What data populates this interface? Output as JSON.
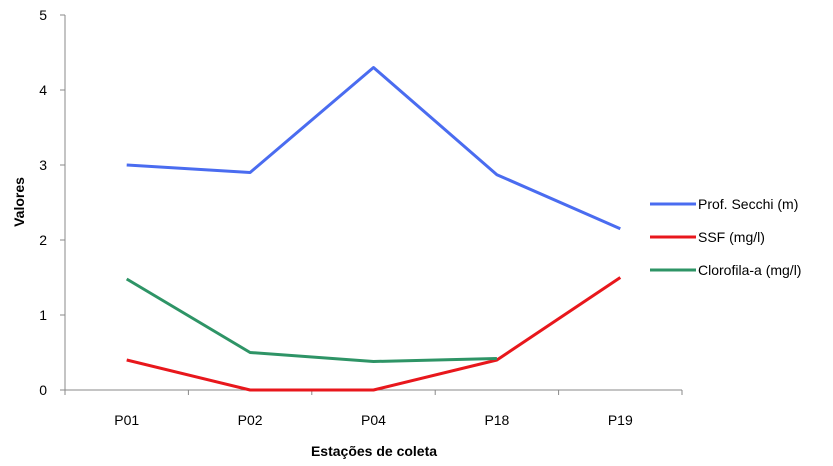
{
  "chart_data": {
    "type": "line",
    "title": "",
    "xlabel": "Estações de coleta",
    "ylabel": "Valores",
    "categories": [
      "P01",
      "P02",
      "P04",
      "P18",
      "P19"
    ],
    "ylim": [
      0,
      5
    ],
    "yticks": [
      0,
      1,
      2,
      3,
      4,
      5
    ],
    "grid": false,
    "legend_position": "right",
    "series": [
      {
        "name": "Prof. Secchi (m)",
        "color": "#4a6cf0",
        "values": [
          3.0,
          2.9,
          4.3,
          2.87,
          2.15
        ]
      },
      {
        "name": "SSF (mg/l)",
        "color": "#e8171c",
        "values": [
          0.4,
          0.0,
          0.0,
          0.4,
          1.5
        ]
      },
      {
        "name": "Clorofila-a (mg/l)",
        "color": "#2e9466",
        "values": [
          1.48,
          0.5,
          0.38,
          0.42,
          null
        ]
      }
    ]
  }
}
